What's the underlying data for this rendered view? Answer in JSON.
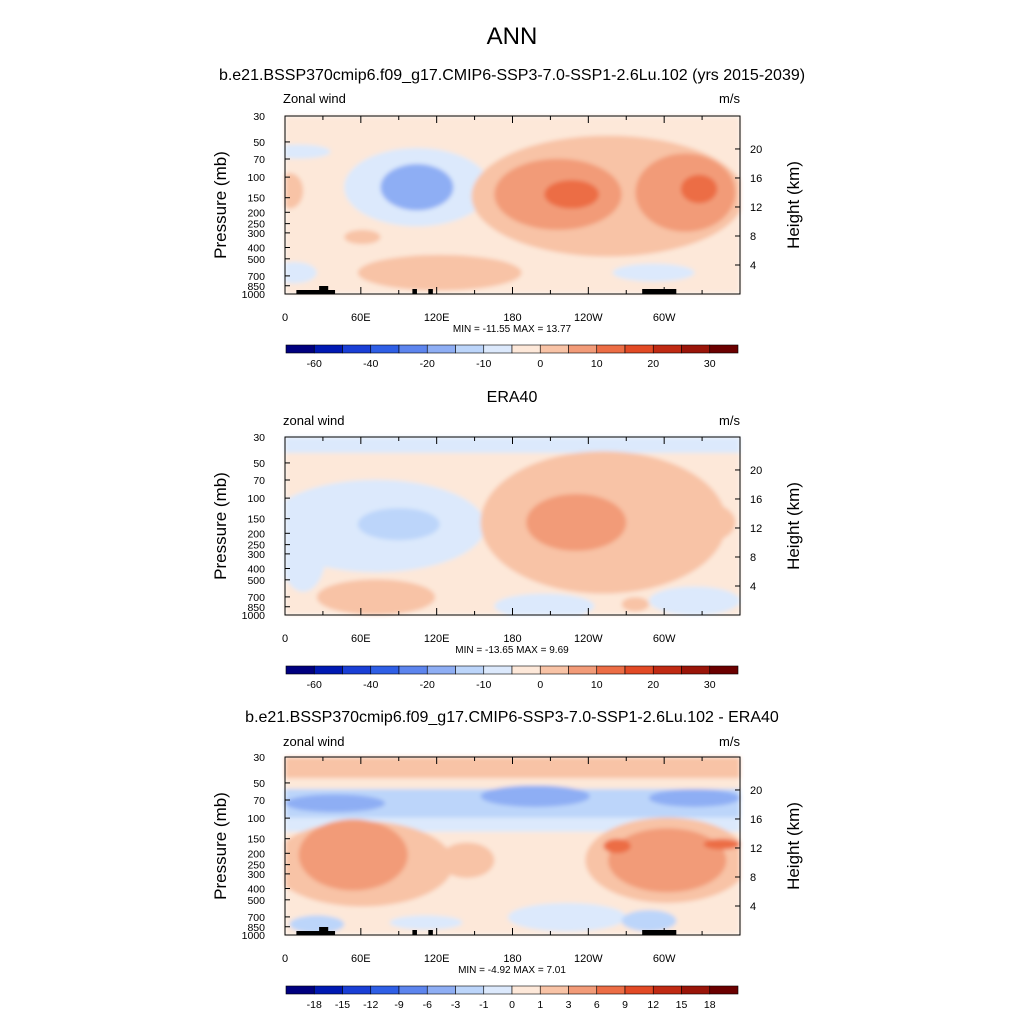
{
  "figure": {
    "title": "ANN"
  },
  "chart_data": [
    {
      "type": "contour",
      "title": "b.e21.BSSP370cmip6.f09_g17.CMIP6-SSP3-7.0-SSP1-2.6Lu.102 (yrs 2015-2039)",
      "left_label": "Zonal wind",
      "right_label": "m/s",
      "ylabel": "Pressure (mb)",
      "ylabel_right": "Height (km)",
      "x_ticks": [
        "0",
        "60E",
        "120E",
        "180",
        "120W",
        "60W"
      ],
      "y_ticks": [
        "30",
        "50",
        "70",
        "100",
        "150",
        "200",
        "250",
        "300",
        "400",
        "500",
        "700",
        "850",
        "1000"
      ],
      "height_ticks": [
        "20",
        "16",
        "12",
        "8",
        "4"
      ],
      "stats": "MIN = -11.55  MAX =  13.77",
      "colorbar": {
        "tick_labels": [
          "-60",
          "-40",
          "-20",
          "-10",
          "0",
          "10",
          "20",
          "30"
        ],
        "colors": [
          "#00007f",
          "#0019b3",
          "#1a3fd6",
          "#2f5fe6",
          "#5d85ee",
          "#8eaef4",
          "#bcd5fa",
          "#dce9fc",
          "#fde8d9",
          "#f8c3a6",
          "#f29b78",
          "#ec6d45",
          "#e24a25",
          "#c02a13",
          "#9a1509",
          "#6b0000"
        ]
      },
      "field_levels": [
        0,
        1,
        -1,
        -2,
        2,
        3,
        4
      ],
      "field_colors": [
        "#fde8d9",
        "#f8c3a6",
        "#dce9fc",
        "#bcd5fa",
        "#f29b78",
        "#ec6d45",
        "#e24a25"
      ]
    },
    {
      "type": "contour",
      "title": "ERA40",
      "left_label": "zonal wind",
      "right_label": "m/s",
      "ylabel": "Pressure (mb)",
      "ylabel_right": "Height (km)",
      "x_ticks": [
        "0",
        "60E",
        "120E",
        "180",
        "120W",
        "60W"
      ],
      "y_ticks": [
        "30",
        "50",
        "70",
        "100",
        "150",
        "200",
        "250",
        "300",
        "400",
        "500",
        "700",
        "850",
        "1000"
      ],
      "height_ticks": [
        "20",
        "16",
        "12",
        "8",
        "4"
      ],
      "stats": "MIN = -13.65  MAX =   9.69",
      "colorbar": {
        "tick_labels": [
          "-60",
          "-40",
          "-20",
          "-10",
          "0",
          "10",
          "20",
          "30"
        ],
        "colors": [
          "#00007f",
          "#0019b3",
          "#1a3fd6",
          "#2f5fe6",
          "#5d85ee",
          "#8eaef4",
          "#bcd5fa",
          "#dce9fc",
          "#fde8d9",
          "#f8c3a6",
          "#f29b78",
          "#ec6d45",
          "#e24a25",
          "#c02a13",
          "#9a1509",
          "#6b0000"
        ]
      }
    },
    {
      "type": "contour",
      "title": "b.e21.BSSP370cmip6.f09_g17.CMIP6-SSP3-7.0-SSP1-2.6Lu.102 - ERA40",
      "left_label": "zonal wind",
      "right_label": "m/s",
      "ylabel": "Pressure (mb)",
      "ylabel_right": "Height (km)",
      "x_ticks": [
        "0",
        "60E",
        "120E",
        "180",
        "120W",
        "60W"
      ],
      "y_ticks": [
        "30",
        "50",
        "70",
        "100",
        "150",
        "200",
        "250",
        "300",
        "400",
        "500",
        "700",
        "850",
        "1000"
      ],
      "height_ticks": [
        "20",
        "16",
        "12",
        "8",
        "4"
      ],
      "stats": "MIN =  -4.92  MAX =   7.01",
      "colorbar": {
        "tick_labels": [
          "-18",
          "-15",
          "-12",
          "-9",
          "-6",
          "-3",
          "-1",
          "0",
          "1",
          "3",
          "6",
          "9",
          "12",
          "15",
          "18"
        ],
        "colors": [
          "#00007f",
          "#0019b3",
          "#1a3fd6",
          "#2f5fe6",
          "#5d85ee",
          "#8eaef4",
          "#bcd5fa",
          "#dce9fc",
          "#fde8d9",
          "#f8c3a6",
          "#f29b78",
          "#ec6d45",
          "#e24a25",
          "#c02a13",
          "#9a1509",
          "#6b0000"
        ]
      }
    }
  ]
}
